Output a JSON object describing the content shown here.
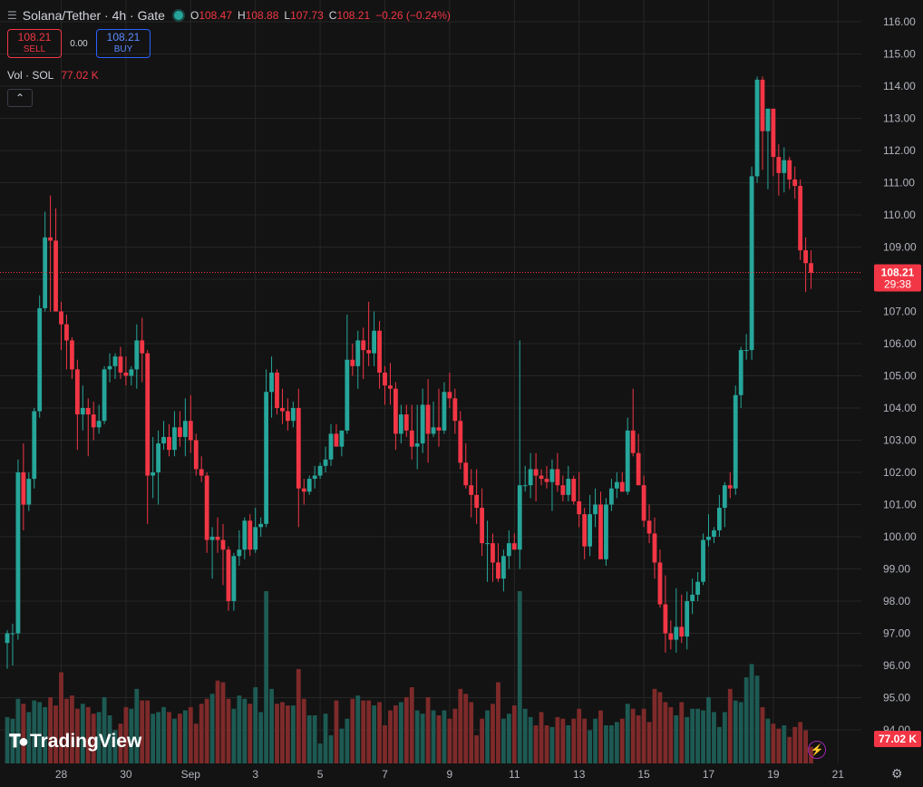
{
  "header": {
    "menu_icon": "list-icon",
    "title": "Solana/Tether · 4h · Gate",
    "ohlc": [
      {
        "key": "O",
        "value": "108.47"
      },
      {
        "key": "H",
        "value": "108.88"
      },
      {
        "key": "L",
        "value": "107.73"
      },
      {
        "key": "C",
        "value": "108.21"
      }
    ],
    "change": "−0.26 (−0.24%)"
  },
  "trade": {
    "sell_price": "108.21",
    "sell_label": "SELL",
    "spread": "0.00",
    "buy_price": "108.21",
    "buy_label": "BUY"
  },
  "volume_legend": {
    "label": "Vol · SOL",
    "value": "77.02 K"
  },
  "collapse_icon": "chevron-up-icon",
  "logo_text": "TradingView",
  "colors": {
    "background": "#131313",
    "up": "#26a69a",
    "down": "#f23645",
    "up_vol": "#1d5a53",
    "down_vol": "#7e2a2a",
    "grid": "#262626",
    "text": "#b2b5be",
    "price_tag": "#f23645",
    "buy": "#2962ff"
  },
  "chart_data": {
    "type": "candlestick",
    "title": "Solana/Tether · 4h · Gate",
    "interval": "4h",
    "ylim": [
      93.6,
      116.6
    ],
    "y_ticks": [
      "116.00",
      "115.00",
      "114.00",
      "113.00",
      "112.00",
      "111.00",
      "110.00",
      "109.00",
      "108.00",
      "107.00",
      "106.00",
      "105.00",
      "104.00",
      "103.00",
      "102.00",
      "101.00",
      "100.00",
      "99.00",
      "98.00",
      "97.00",
      "96.00",
      "95.00",
      "94.00"
    ],
    "x_ticks": [
      {
        "label": "28",
        "index": 10
      },
      {
        "label": "30",
        "index": 22
      },
      {
        "label": "Sep",
        "index": 34
      },
      {
        "label": "3",
        "index": 46
      },
      {
        "label": "5",
        "index": 58
      },
      {
        "label": "7",
        "index": 70
      },
      {
        "label": "9",
        "index": 82
      },
      {
        "label": "11",
        "index": 94
      },
      {
        "label": "13",
        "index": 106
      },
      {
        "label": "15",
        "index": 118
      },
      {
        "label": "17",
        "index": 130
      },
      {
        "label": "19",
        "index": 142
      },
      {
        "label": "21",
        "index": 154
      }
    ],
    "candles": [
      [
        96.7,
        97.1,
        95.9,
        97.0
      ],
      [
        97.0,
        97.3,
        96.0,
        97.0
      ],
      [
        97.0,
        102.4,
        96.8,
        102.0
      ],
      [
        102.0,
        102.9,
        100.2,
        101.0
      ],
      [
        101.0,
        102.0,
        100.8,
        101.8
      ],
      [
        101.8,
        104.0,
        101.5,
        103.9
      ],
      [
        103.9,
        107.5,
        103.7,
        107.1
      ],
      [
        107.1,
        110.1,
        107.0,
        109.3
      ],
      [
        109.3,
        110.6,
        107.0,
        109.2
      ],
      [
        109.2,
        110.2,
        107.0,
        107.0
      ],
      [
        107.0,
        107.3,
        105.8,
        106.6
      ],
      [
        106.6,
        106.9,
        105.2,
        106.1
      ],
      [
        106.1,
        106.2,
        104.9,
        105.2
      ],
      [
        105.2,
        105.5,
        102.7,
        103.8
      ],
      [
        103.8,
        104.7,
        103.3,
        104.0
      ],
      [
        104.0,
        104.3,
        102.5,
        103.8
      ],
      [
        103.8,
        104.2,
        103.0,
        103.4
      ],
      [
        103.4,
        104.1,
        103.2,
        103.6
      ],
      [
        103.6,
        105.3,
        103.5,
        105.2
      ],
      [
        105.2,
        105.7,
        104.8,
        105.3
      ],
      [
        105.3,
        105.7,
        104.9,
        105.6
      ],
      [
        105.6,
        105.9,
        104.9,
        105.1
      ],
      [
        105.1,
        105.6,
        104.7,
        105.0
      ],
      [
        105.0,
        105.3,
        104.7,
        105.2
      ],
      [
        105.2,
        106.6,
        104.6,
        106.1
      ],
      [
        106.1,
        106.8,
        104.8,
        105.7
      ],
      [
        105.7,
        105.8,
        100.4,
        101.9
      ],
      [
        101.9,
        103.1,
        101.2,
        102.0
      ],
      [
        102.0,
        103.3,
        101.0,
        102.9
      ],
      [
        102.9,
        103.6,
        102.7,
        103.1
      ],
      [
        103.1,
        103.5,
        102.5,
        102.7
      ],
      [
        102.7,
        103.9,
        102.5,
        103.4
      ],
      [
        103.4,
        103.9,
        102.8,
        103.1
      ],
      [
        103.1,
        104.3,
        102.5,
        103.6
      ],
      [
        103.6,
        104.4,
        102.6,
        103.0
      ],
      [
        103.0,
        103.2,
        101.9,
        102.1
      ],
      [
        102.1,
        102.5,
        101.7,
        101.9
      ],
      [
        101.9,
        102.0,
        99.5,
        99.9
      ],
      [
        99.9,
        100.3,
        98.7,
        100.0
      ],
      [
        100.0,
        100.6,
        99.5,
        99.9
      ],
      [
        99.9,
        100.4,
        98.5,
        99.6
      ],
      [
        99.6,
        99.7,
        97.7,
        98.0
      ],
      [
        98.0,
        99.5,
        97.7,
        99.4
      ],
      [
        99.4,
        100.2,
        99.1,
        99.6
      ],
      [
        99.6,
        100.6,
        99.3,
        100.5
      ],
      [
        100.5,
        100.7,
        99.4,
        99.6
      ],
      [
        99.6,
        100.9,
        99.5,
        100.3
      ],
      [
        100.3,
        100.6,
        100.0,
        100.4
      ],
      [
        100.4,
        105.2,
        100.3,
        104.5
      ],
      [
        104.5,
        105.6,
        103.7,
        105.1
      ],
      [
        105.1,
        105.2,
        103.8,
        104.0
      ],
      [
        104.0,
        104.6,
        103.5,
        103.9
      ],
      [
        103.9,
        104.3,
        103.3,
        103.6
      ],
      [
        103.6,
        104.2,
        103.4,
        104.0
      ],
      [
        104.0,
        104.6,
        100.3,
        101.5
      ],
      [
        101.5,
        101.8,
        101.0,
        101.4
      ],
      [
        101.4,
        101.9,
        101.3,
        101.8
      ],
      [
        101.8,
        102.2,
        101.5,
        101.9
      ],
      [
        101.9,
        102.3,
        101.8,
        102.2
      ],
      [
        102.2,
        102.8,
        102.0,
        102.4
      ],
      [
        102.4,
        103.5,
        102.2,
        103.2
      ],
      [
        103.2,
        103.5,
        102.8,
        102.8
      ],
      [
        102.8,
        103.3,
        102.5,
        103.3
      ],
      [
        103.3,
        106.9,
        103.2,
        105.5
      ],
      [
        105.5,
        106.0,
        105.0,
        105.3
      ],
      [
        105.3,
        106.4,
        104.6,
        106.1
      ],
      [
        106.1,
        106.5,
        104.9,
        105.8
      ],
      [
        105.8,
        107.3,
        105.3,
        105.7
      ],
      [
        105.7,
        107.0,
        105.3,
        106.4
      ],
      [
        106.4,
        106.7,
        104.6,
        105.1
      ],
      [
        105.1,
        105.3,
        104.1,
        104.7
      ],
      [
        104.7,
        105.4,
        104.1,
        104.6
      ],
      [
        104.6,
        104.8,
        102.7,
        103.2
      ],
      [
        103.2,
        104.1,
        102.9,
        103.8
      ],
      [
        103.8,
        104.1,
        103.1,
        103.3
      ],
      [
        103.3,
        104.1,
        102.4,
        102.8
      ],
      [
        102.8,
        104.1,
        102.1,
        102.9
      ],
      [
        102.9,
        104.6,
        102.6,
        104.1
      ],
      [
        104.1,
        104.9,
        102.3,
        103.2
      ],
      [
        103.2,
        104.2,
        103.1,
        103.4
      ],
      [
        103.4,
        104.6,
        102.8,
        103.3
      ],
      [
        103.3,
        104.8,
        103.2,
        104.5
      ],
      [
        104.5,
        105.1,
        104.0,
        104.3
      ],
      [
        104.3,
        104.6,
        103.2,
        103.6
      ],
      [
        103.6,
        103.9,
        102.1,
        102.3
      ],
      [
        102.3,
        102.9,
        101.5,
        101.6
      ],
      [
        101.6,
        102.1,
        100.6,
        101.3
      ],
      [
        101.3,
        102.1,
        100.4,
        100.9
      ],
      [
        100.9,
        101.5,
        99.4,
        99.8
      ],
      [
        99.8,
        100.5,
        98.6,
        99.8
      ],
      [
        99.8,
        100.1,
        98.6,
        99.2
      ],
      [
        99.2,
        99.8,
        98.6,
        98.7
      ],
      [
        98.7,
        99.6,
        98.3,
        99.4
      ],
      [
        99.4,
        100.2,
        99.0,
        99.8
      ],
      [
        99.8,
        100.1,
        99.6,
        99.6
      ],
      [
        99.6,
        106.1,
        99.0,
        101.6
      ],
      [
        101.6,
        102.2,
        101.4,
        101.6
      ],
      [
        101.6,
        102.6,
        101.2,
        102.1
      ],
      [
        102.1,
        102.6,
        101.1,
        101.9
      ],
      [
        101.9,
        102.1,
        101.6,
        101.8
      ],
      [
        101.8,
        102.2,
        101.5,
        101.7
      ],
      [
        101.7,
        102.4,
        100.8,
        102.1
      ],
      [
        102.1,
        102.6,
        101.4,
        101.6
      ],
      [
        101.6,
        101.9,
        101.1,
        101.3
      ],
      [
        101.3,
        102.2,
        101.1,
        101.8
      ],
      [
        101.8,
        101.9,
        101.0,
        101.1
      ],
      [
        101.1,
        102.0,
        100.3,
        100.7
      ],
      [
        100.7,
        100.9,
        99.3,
        99.7
      ],
      [
        99.7,
        101.3,
        99.4,
        100.7
      ],
      [
        100.7,
        101.5,
        100.3,
        101.0
      ],
      [
        101.0,
        101.4,
        99.5,
        99.3
      ],
      [
        99.3,
        101.2,
        99.1,
        101.0
      ],
      [
        101.0,
        101.8,
        100.8,
        101.5
      ],
      [
        101.5,
        102.0,
        101.2,
        101.7
      ],
      [
        101.7,
        102.0,
        101.4,
        101.4
      ],
      [
        101.4,
        103.7,
        101.3,
        103.3
      ],
      [
        103.3,
        104.6,
        102.5,
        102.6
      ],
      [
        102.6,
        103.2,
        101.6,
        101.6
      ],
      [
        101.6,
        101.9,
        100.3,
        100.5
      ],
      [
        100.5,
        101.0,
        99.8,
        100.1
      ],
      [
        100.1,
        100.6,
        98.7,
        99.2
      ],
      [
        99.2,
        99.6,
        97.8,
        97.9
      ],
      [
        97.9,
        98.8,
        96.4,
        97.0
      ],
      [
        97.0,
        97.4,
        96.5,
        96.8
      ],
      [
        96.8,
        98.4,
        96.4,
        97.2
      ],
      [
        97.2,
        98.2,
        96.7,
        96.9
      ],
      [
        96.9,
        98.3,
        96.5,
        98.0
      ],
      [
        98.0,
        98.7,
        97.6,
        98.2
      ],
      [
        98.2,
        98.9,
        98.0,
        98.6
      ],
      [
        98.6,
        100.1,
        98.5,
        99.9
      ],
      [
        99.9,
        100.7,
        99.7,
        100.0
      ],
      [
        100.0,
        100.3,
        99.8,
        100.2
      ],
      [
        100.2,
        101.3,
        100.0,
        100.9
      ],
      [
        100.9,
        101.7,
        100.3,
        101.6
      ],
      [
        101.6,
        102.0,
        101.2,
        101.5
      ],
      [
        101.5,
        104.7,
        101.3,
        104.4
      ],
      [
        104.4,
        105.9,
        104.0,
        105.8
      ],
      [
        105.8,
        106.3,
        105.5,
        105.8
      ],
      [
        105.8,
        111.5,
        105.5,
        111.2
      ],
      [
        111.2,
        114.3,
        111.0,
        114.2
      ],
      [
        114.2,
        114.3,
        111.4,
        112.6
      ],
      [
        112.6,
        113.3,
        110.8,
        113.3
      ],
      [
        113.3,
        113.3,
        111.2,
        111.8
      ],
      [
        111.8,
        112.2,
        110.6,
        111.3
      ],
      [
        111.3,
        112.1,
        110.7,
        111.7
      ],
      [
        111.7,
        111.8,
        110.8,
        111.1
      ],
      [
        111.1,
        111.5,
        110.5,
        110.9
      ],
      [
        110.9,
        111.1,
        108.6,
        108.9
      ],
      [
        108.9,
        109.3,
        107.6,
        108.5
      ],
      [
        108.5,
        108.9,
        107.7,
        108.2
      ]
    ],
    "volume": [
      28,
      27,
      39,
      36,
      31,
      38,
      37,
      34,
      40,
      35,
      55,
      39,
      41,
      33,
      36,
      34,
      30,
      31,
      40,
      29,
      20,
      24,
      34,
      33,
      45,
      38,
      38,
      30,
      31,
      34,
      31,
      27,
      30,
      32,
      34,
      24,
      36,
      39,
      42,
      50,
      49,
      39,
      33,
      41,
      39,
      36,
      46,
      31,
      104,
      45,
      36,
      37,
      35,
      35,
      57,
      39,
      29,
      29,
      12,
      30,
      17,
      38,
      21,
      27,
      39,
      41,
      38,
      38,
      35,
      37,
      23,
      32,
      35,
      37,
      40,
      46,
      32,
      30,
      40,
      32,
      29,
      32,
      27,
      33,
      45,
      42,
      37,
      17,
      27,
      32,
      36,
      49,
      27,
      30,
      35,
      104,
      33,
      28,
      23,
      31,
      23,
      22,
      28,
      27,
      23,
      27,
      33,
      27,
      20,
      27,
      32,
      23,
      23,
      25,
      27,
      36,
      33,
      29,
      33,
      25,
      45,
      43,
      37,
      34,
      29,
      37,
      28,
      33,
      33,
      32,
      40,
      31,
      22,
      31,
      45,
      38,
      37,
      52,
      60,
      53,
      34,
      27,
      24,
      21,
      23,
      16,
      22,
      25,
      20,
      10
    ],
    "last_price": "108.21",
    "countdown": "29:38",
    "volume_label": "Vol · SOL",
    "volume_last": "77.02 K"
  }
}
